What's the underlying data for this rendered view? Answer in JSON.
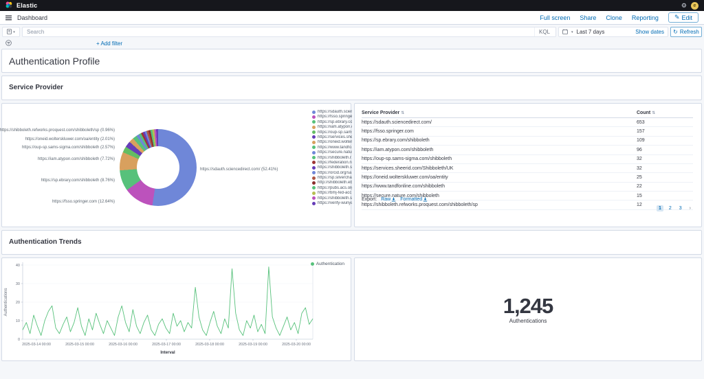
{
  "app": {
    "brand": "Elastic",
    "user_initial": "e"
  },
  "breadcrumb": {
    "label": "Dashboard"
  },
  "toolbar": {
    "links": [
      "Full screen",
      "Share",
      "Clone",
      "Reporting"
    ],
    "edit_label": "Edit"
  },
  "query_bar": {
    "placeholder": "Search",
    "language": "KQL",
    "time_range": "Last 7 days",
    "show_dates": "Show dates",
    "refresh_label": "Refresh"
  },
  "filter_bar": {
    "add_filter": "+ Add filter"
  },
  "sections": {
    "markdown_title": "Authentication Profile",
    "service_provider": "Service Provider",
    "trends": "Authentication Trends"
  },
  "colors": {
    "accent": "#006bb4",
    "line_green": "#57c17b",
    "topbar": "#16171c"
  },
  "chart_data": [
    {
      "type": "pie",
      "title": "Service Provider donut",
      "slices": [
        {
          "label": "https://sdauth.sciencedirect.com/",
          "pct": 52.41,
          "color": "#6f87d8",
          "legend_label": "https://sdauth.scien…"
        },
        {
          "label": "https://fsso.springer.com",
          "pct": 12.64,
          "color": "#bc52bc",
          "legend_label": "https://fsso.springer…"
        },
        {
          "label": "https://sp.ebrary.com/shibboleth",
          "pct": 8.76,
          "color": "#57c17b",
          "legend_label": "https://sp.ebrary.co…"
        },
        {
          "label": "https://iam.atypon.com/shibboleth",
          "pct": 7.72,
          "color": "#d8a05e",
          "legend_label": "https://iam.atypon.c…"
        },
        {
          "label": "https://oup-sp.sams-sigma.com/shibboleth",
          "pct": 2.57,
          "color": "#64bd63",
          "legend_label": "https://oup-sp.sams…"
        },
        {
          "label": "https://services.sheerid.com/Shibboleth/UK",
          "pct": 2.57,
          "color": "#663db8",
          "legend_label": "https://services.she…"
        },
        {
          "label": "https://oneid.wolterskluwer.com/oa/entity",
          "pct": 2.01,
          "color": "#d8a05e",
          "legend_label": "https://oneid.wolter…"
        },
        {
          "label": "https://www.tandfonline.com/shibboleth",
          "pct": 1.77,
          "color": "#57c17b",
          "legend_label": "https://www.tandfo…"
        },
        {
          "label": "https://secure.nature.com/shibboleth",
          "pct": 1.2,
          "color": "#6f87d8",
          "legend_label": "https://secure.natur…"
        },
        {
          "label": "https://shibboleth.refworks.proquest.com/shibboleth/sp",
          "pct": 0.96,
          "color": "#57c17b",
          "legend_label": "https://shibboleth.r…"
        },
        {
          "label": "https://federation.n…",
          "pct": 0.82,
          "color": "#9e3533",
          "legend_label": "https://federation.n…"
        },
        {
          "label": "https://shibboleth.s…",
          "pct": 0.82,
          "color": "#663db8",
          "legend_label": "https://shibboleth.s…"
        },
        {
          "label": "https://orcid.org/sa…",
          "pct": 0.82,
          "color": "#6f87d8",
          "legend_label": "https://orcid.org/sa…"
        },
        {
          "label": "https://sp.silverchair…",
          "pct": 0.82,
          "color": "#af5744",
          "legend_label": "https://sp.silverchair…"
        },
        {
          "label": "http://shibboleth.eb…",
          "pct": 0.82,
          "color": "#8c2e2e",
          "legend_label": "http://shibboleth.eb…"
        },
        {
          "label": "https://pubs.acs.org…",
          "pct": 0.82,
          "color": "#57c17b",
          "legend_label": "https://pubs.acs.org…"
        },
        {
          "label": "https://bmj-fed-acc…",
          "pct": 0.82,
          "color": "#b6bf51",
          "legend_label": "https://bmj-fed-acc…"
        },
        {
          "label": "https://shibboleth.s…",
          "pct": 0.82,
          "color": "#bc52bc",
          "legend_label": "https://shibboleth.s…"
        },
        {
          "label": "https://verify-wunyu…",
          "pct": 0.72,
          "color": "#663db8",
          "legend_label": "https://verify-wunyu…"
        }
      ],
      "callouts": [
        "https://shibboleth.refworks.proquest.com/shibboleth/sp (0.96%)",
        "https://oneid.wolterskluwer.com/oa/entity (2.01%)",
        "https://oup-sp.sams-sigma.com/shibboleth (2.57%)",
        "https://iam.atypon.com/shibboleth (7.72%)",
        "https://sp.ebrary.com/shibboleth (8.76%)",
        "https://fsso.springer.com (12.64%)",
        "https://sdauth.sciencedirect.com/ (52.41%)"
      ]
    },
    {
      "type": "table",
      "columns": [
        "Service Provider",
        "Count"
      ],
      "rows": [
        {
          "provider": "https://sdauth.sciencedirect.com/",
          "count": "653"
        },
        {
          "provider": "https://fsso.springer.com",
          "count": "157"
        },
        {
          "provider": "https://sp.ebrary.com/shibboleth",
          "count": "109"
        },
        {
          "provider": "https://iam.atypon.com/shibboleth",
          "count": "96"
        },
        {
          "provider": "https://oup-sp.sams-sigma.com/shibboleth",
          "count": "32"
        },
        {
          "provider": "https://services.sheerid.com/Shibboleth/UK",
          "count": "32"
        },
        {
          "provider": "https://oneid.wolterskluwer.com/oa/entity",
          "count": "25"
        },
        {
          "provider": "https://www.tandfonline.com/shibboleth",
          "count": "22"
        },
        {
          "provider": "https://secure.nature.com/shibboleth",
          "count": "15"
        },
        {
          "provider": "https://shibboleth.refworks.proquest.com/shibboleth/sp",
          "count": "12"
        }
      ],
      "export_label": "Export:",
      "export_raw": "Raw",
      "export_formatted": "Formatted",
      "pages": [
        "1",
        "2",
        "3"
      ]
    },
    {
      "type": "line",
      "legend": "Authentication",
      "color": "#57c17b",
      "xlabel": "Interval",
      "ylabel": "Authentications",
      "ylim": [
        0,
        40
      ],
      "yticks": [
        0,
        10,
        20,
        30,
        40
      ],
      "xticks": [
        "2025-03-14 00:00",
        "2025-03-15 00:00",
        "2025-03-16 00:00",
        "2025-03-17 00:00",
        "2025-03-18 00:00",
        "2025-03-19 00:00",
        "2025-03-20 00:00"
      ],
      "values": [
        5,
        9,
        3,
        13,
        7,
        2,
        10,
        15,
        18,
        6,
        3,
        8,
        12,
        4,
        9,
        17,
        7,
        2,
        11,
        5,
        14,
        8,
        3,
        10,
        6,
        2,
        12,
        18,
        9,
        4,
        16,
        7,
        3,
        9,
        13,
        5,
        2,
        8,
        11,
        6,
        3,
        14,
        7,
        10,
        4,
        9,
        6,
        28,
        12,
        5,
        2,
        9,
        15,
        7,
        3,
        11,
        6,
        38,
        14,
        5,
        2,
        10,
        6,
        13,
        4,
        8,
        3,
        39,
        12,
        6,
        2,
        7,
        12,
        5,
        9,
        3,
        14,
        17,
        8,
        11
      ]
    },
    {
      "type": "metric",
      "value": "1,245",
      "label": "Authentications"
    }
  ]
}
